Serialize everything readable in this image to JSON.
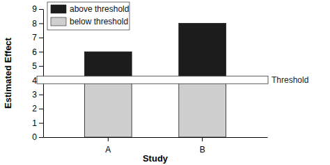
{
  "chart_data": {
    "type": "bar",
    "stacked": true,
    "x_label": "Study",
    "y_label": "Estimated Effect",
    "categories": [
      "A",
      "B"
    ],
    "series": [
      {
        "name": "above threshold",
        "color": "#1c1c1c",
        "values": [
          2,
          4
        ]
      },
      {
        "name": "below threshold",
        "color": "#cfcfcf",
        "values": [
          4,
          4
        ]
      }
    ],
    "ylim": [
      0,
      9
    ],
    "yticks": [
      0,
      1,
      2,
      3,
      4,
      5,
      6,
      7,
      8,
      9
    ],
    "legend": "upper left",
    "annotations": [
      {
        "text": "Threshold",
        "y": 4
      }
    ]
  }
}
